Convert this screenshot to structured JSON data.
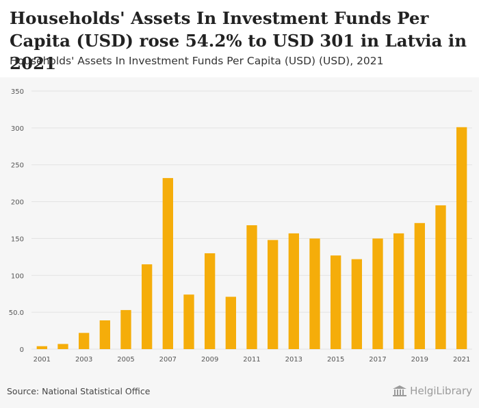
{
  "title": "Households' Assets In Investment Funds Per Capita (USD) rose 54.2% to USD 301 in Latvia in 2021",
  "subtitle": "Households' Assets In Investment Funds Per Capita (USD) (USD), 2021",
  "source": "Source: National Statistical Office",
  "brand": "HelgiLibrary",
  "colors": {
    "bar": "#f5ad0a",
    "grid": "#e2e2e2",
    "axis_text": "#555555"
  },
  "chart_data": {
    "type": "bar",
    "title": "Households' Assets In Investment Funds Per Capita (USD) (USD), 2021",
    "xlabel": "",
    "ylabel": "",
    "categories": [
      "2001",
      "2002",
      "2003",
      "2004",
      "2005",
      "2006",
      "2007",
      "2008",
      "2009",
      "2010",
      "2011",
      "2012",
      "2013",
      "2014",
      "2015",
      "2016",
      "2017",
      "2018",
      "2019",
      "2020",
      "2021"
    ],
    "x_tick_labels": [
      "2001",
      "",
      "2003",
      "",
      "2005",
      "",
      "2007",
      "",
      "2009",
      "",
      "2011",
      "",
      "2013",
      "",
      "2015",
      "",
      "2017",
      "",
      "2019",
      "",
      "2021"
    ],
    "values": [
      4,
      7,
      22,
      39,
      53,
      115,
      232,
      74,
      130,
      71,
      168,
      148,
      157,
      150,
      127,
      122,
      150,
      157,
      171,
      195,
      301
    ],
    "ylim": [
      0,
      350
    ],
    "yticks": [
      0,
      50,
      100,
      150,
      200,
      250,
      300,
      350
    ],
    "ytick_labels": [
      "0",
      "50.0",
      "100",
      "150",
      "200",
      "250",
      "300",
      "350"
    ],
    "grid": true
  }
}
